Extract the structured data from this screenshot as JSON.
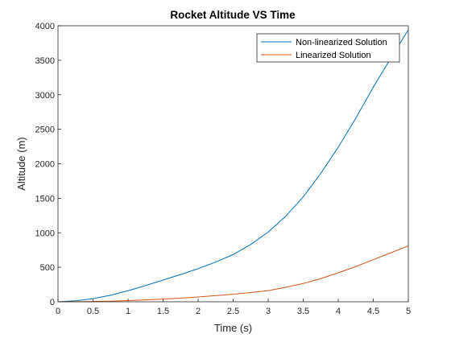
{
  "chart_data": {
    "type": "line",
    "title": "Rocket Altitude VS Time",
    "xlabel": "Time (s)",
    "ylabel": "Altitude (m)",
    "xlim": [
      0,
      5
    ],
    "ylim": [
      0,
      4000
    ],
    "xticks": [
      0,
      0.5,
      1,
      1.5,
      2,
      2.5,
      3,
      3.5,
      4,
      4.5,
      5
    ],
    "xtick_labels": [
      "0",
      "0.5",
      "1",
      "1.5",
      "2",
      "2.5",
      "3",
      "3.5",
      "4",
      "4.5",
      "5"
    ],
    "yticks": [
      0,
      500,
      1000,
      1500,
      2000,
      2500,
      3000,
      3500,
      4000
    ],
    "ytick_labels": [
      "0",
      "500",
      "1000",
      "1500",
      "2000",
      "2500",
      "3000",
      "3500",
      "4000"
    ],
    "grid": false,
    "legend_position": "top-right",
    "series": [
      {
        "name": "Non-linearized Solution",
        "color": "#0072BD",
        "x": [
          0,
          0.25,
          0.5,
          0.75,
          1,
          1.25,
          1.5,
          1.75,
          2,
          2.25,
          2.5,
          2.75,
          3,
          3.25,
          3.5,
          3.75,
          4,
          4.25,
          4.5,
          4.75,
          5
        ],
        "y": [
          0,
          15,
          45,
          95,
          160,
          235,
          315,
          395,
          480,
          575,
          685,
          830,
          1010,
          1240,
          1520,
          1860,
          2240,
          2660,
          3110,
          3530,
          3940
        ]
      },
      {
        "name": "Linearized Solution",
        "color": "#D95319",
        "x": [
          0,
          0.25,
          0.5,
          0.75,
          1,
          1.25,
          1.5,
          1.75,
          2,
          2.25,
          2.5,
          2.75,
          3,
          3.25,
          3.5,
          3.75,
          4,
          4.25,
          4.5,
          4.75,
          5
        ],
        "y": [
          0,
          1,
          4,
          9,
          17,
          27,
          39,
          53,
          70,
          89,
          110,
          134,
          162,
          210,
          265,
          335,
          420,
          510,
          610,
          710,
          810
        ]
      }
    ]
  }
}
